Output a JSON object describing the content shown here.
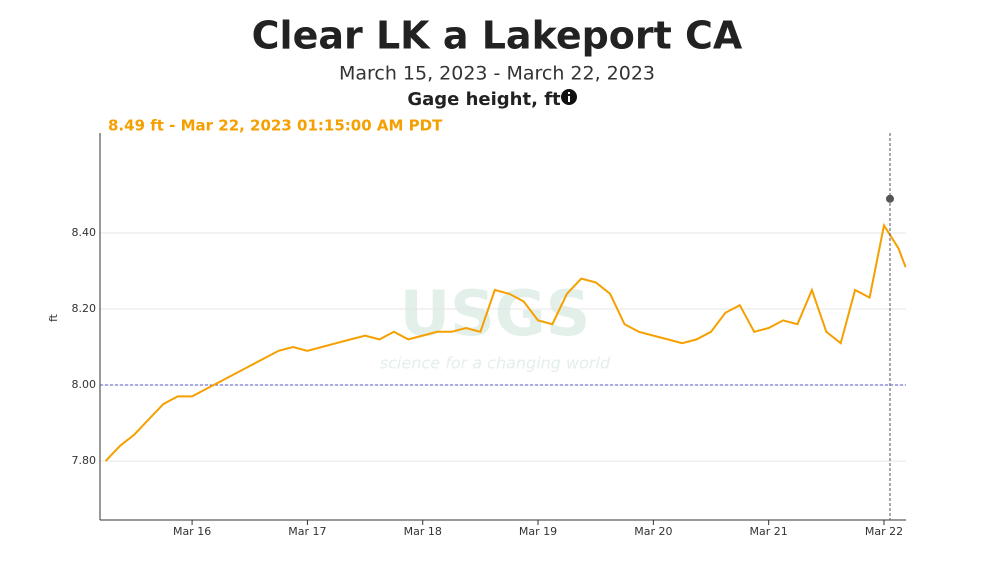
{
  "chart_data": {
    "type": "line",
    "title": "Clear LK a Lakeport CA",
    "subtitle": "March 15, 2023 - March 22, 2023",
    "y_label_title": "Gage height, ft",
    "ylabel": "ft",
    "watermark": [
      "USGS",
      "science for a changing world"
    ],
    "highlight": {
      "x": "2023-03-22T01:15",
      "value": 8.49,
      "label": "8.49 ft - Mar 22, 2023 01:15:00 AM PDT"
    },
    "reference_line": 8,
    "xlim": [
      "2023-03-15T04:50",
      "2023-03-22T04:35"
    ],
    "xticks": [
      {
        "value": "2023-03-16T00:00",
        "label": "Mar 16"
      },
      {
        "value": "2023-03-17T00:00",
        "label": "Mar 17"
      },
      {
        "value": "2023-03-18T00:00",
        "label": "Mar 18"
      },
      {
        "value": "2023-03-19T00:00",
        "label": "Mar 19"
      },
      {
        "value": "2023-03-20T00:00",
        "label": "Mar 20"
      },
      {
        "value": "2023-03-21T00:00",
        "label": "Mar 21"
      },
      {
        "value": "2023-03-22T00:00",
        "label": "Mar 22"
      }
    ],
    "ylim": [
      7.645,
      8.663
    ],
    "yticks": [
      {
        "value": 7.8,
        "label": "7.80"
      },
      {
        "value": 8.0,
        "label": "8.00"
      },
      {
        "value": 8.2,
        "label": "8.20"
      },
      {
        "value": 8.4,
        "label": "8.40"
      }
    ],
    "grid": true,
    "x": [
      "2023-03-15T06:00",
      "2023-03-15T09:00",
      "2023-03-15T12:00",
      "2023-03-15T15:00",
      "2023-03-15T18:00",
      "2023-03-15T21:00",
      "2023-03-16T00:00",
      "2023-03-16T03:00",
      "2023-03-16T06:00",
      "2023-03-16T09:00",
      "2023-03-16T12:00",
      "2023-03-16T15:00",
      "2023-03-16T18:00",
      "2023-03-16T21:00",
      "2023-03-17T00:00",
      "2023-03-17T03:00",
      "2023-03-17T06:00",
      "2023-03-17T09:00",
      "2023-03-17T12:00",
      "2023-03-17T15:00",
      "2023-03-17T18:00",
      "2023-03-17T21:00",
      "2023-03-18T00:00",
      "2023-03-18T03:00",
      "2023-03-18T06:00",
      "2023-03-18T09:00",
      "2023-03-18T12:00",
      "2023-03-18T15:00",
      "2023-03-18T18:00",
      "2023-03-18T21:00",
      "2023-03-19T00:00",
      "2023-03-19T03:00",
      "2023-03-19T06:00",
      "2023-03-19T09:00",
      "2023-03-19T12:00",
      "2023-03-19T15:00",
      "2023-03-19T18:00",
      "2023-03-19T21:00",
      "2023-03-20T00:00",
      "2023-03-20T03:00",
      "2023-03-20T06:00",
      "2023-03-20T09:00",
      "2023-03-20T12:00",
      "2023-03-20T15:00",
      "2023-03-20T18:00",
      "2023-03-20T21:00",
      "2023-03-21T00:00",
      "2023-03-21T03:00",
      "2023-03-21T06:00",
      "2023-03-21T09:00",
      "2023-03-21T12:00",
      "2023-03-21T15:00",
      "2023-03-21T18:00",
      "2023-03-21T21:00",
      "2023-03-22T00:00",
      "2023-03-22T03:00",
      "2023-03-22T04:30"
    ],
    "series": [
      {
        "name": "Gage height",
        "color": "#f5a000",
        "values": [
          7.8,
          7.84,
          7.87,
          7.91,
          7.95,
          7.97,
          7.97,
          7.99,
          8.01,
          8.03,
          8.05,
          8.07,
          8.09,
          8.1,
          8.09,
          8.1,
          8.11,
          8.12,
          8.13,
          8.12,
          8.14,
          8.12,
          8.13,
          8.14,
          8.14,
          8.15,
          8.14,
          8.25,
          8.24,
          8.22,
          8.17,
          8.16,
          8.24,
          8.28,
          8.27,
          8.24,
          8.16,
          8.14,
          8.13,
          8.12,
          8.11,
          8.12,
          8.14,
          8.19,
          8.21,
          8.14,
          8.15,
          8.17,
          8.16,
          8.25,
          8.14,
          8.11,
          8.25,
          8.23,
          8.42,
          8.36,
          8.31
        ]
      }
    ]
  }
}
